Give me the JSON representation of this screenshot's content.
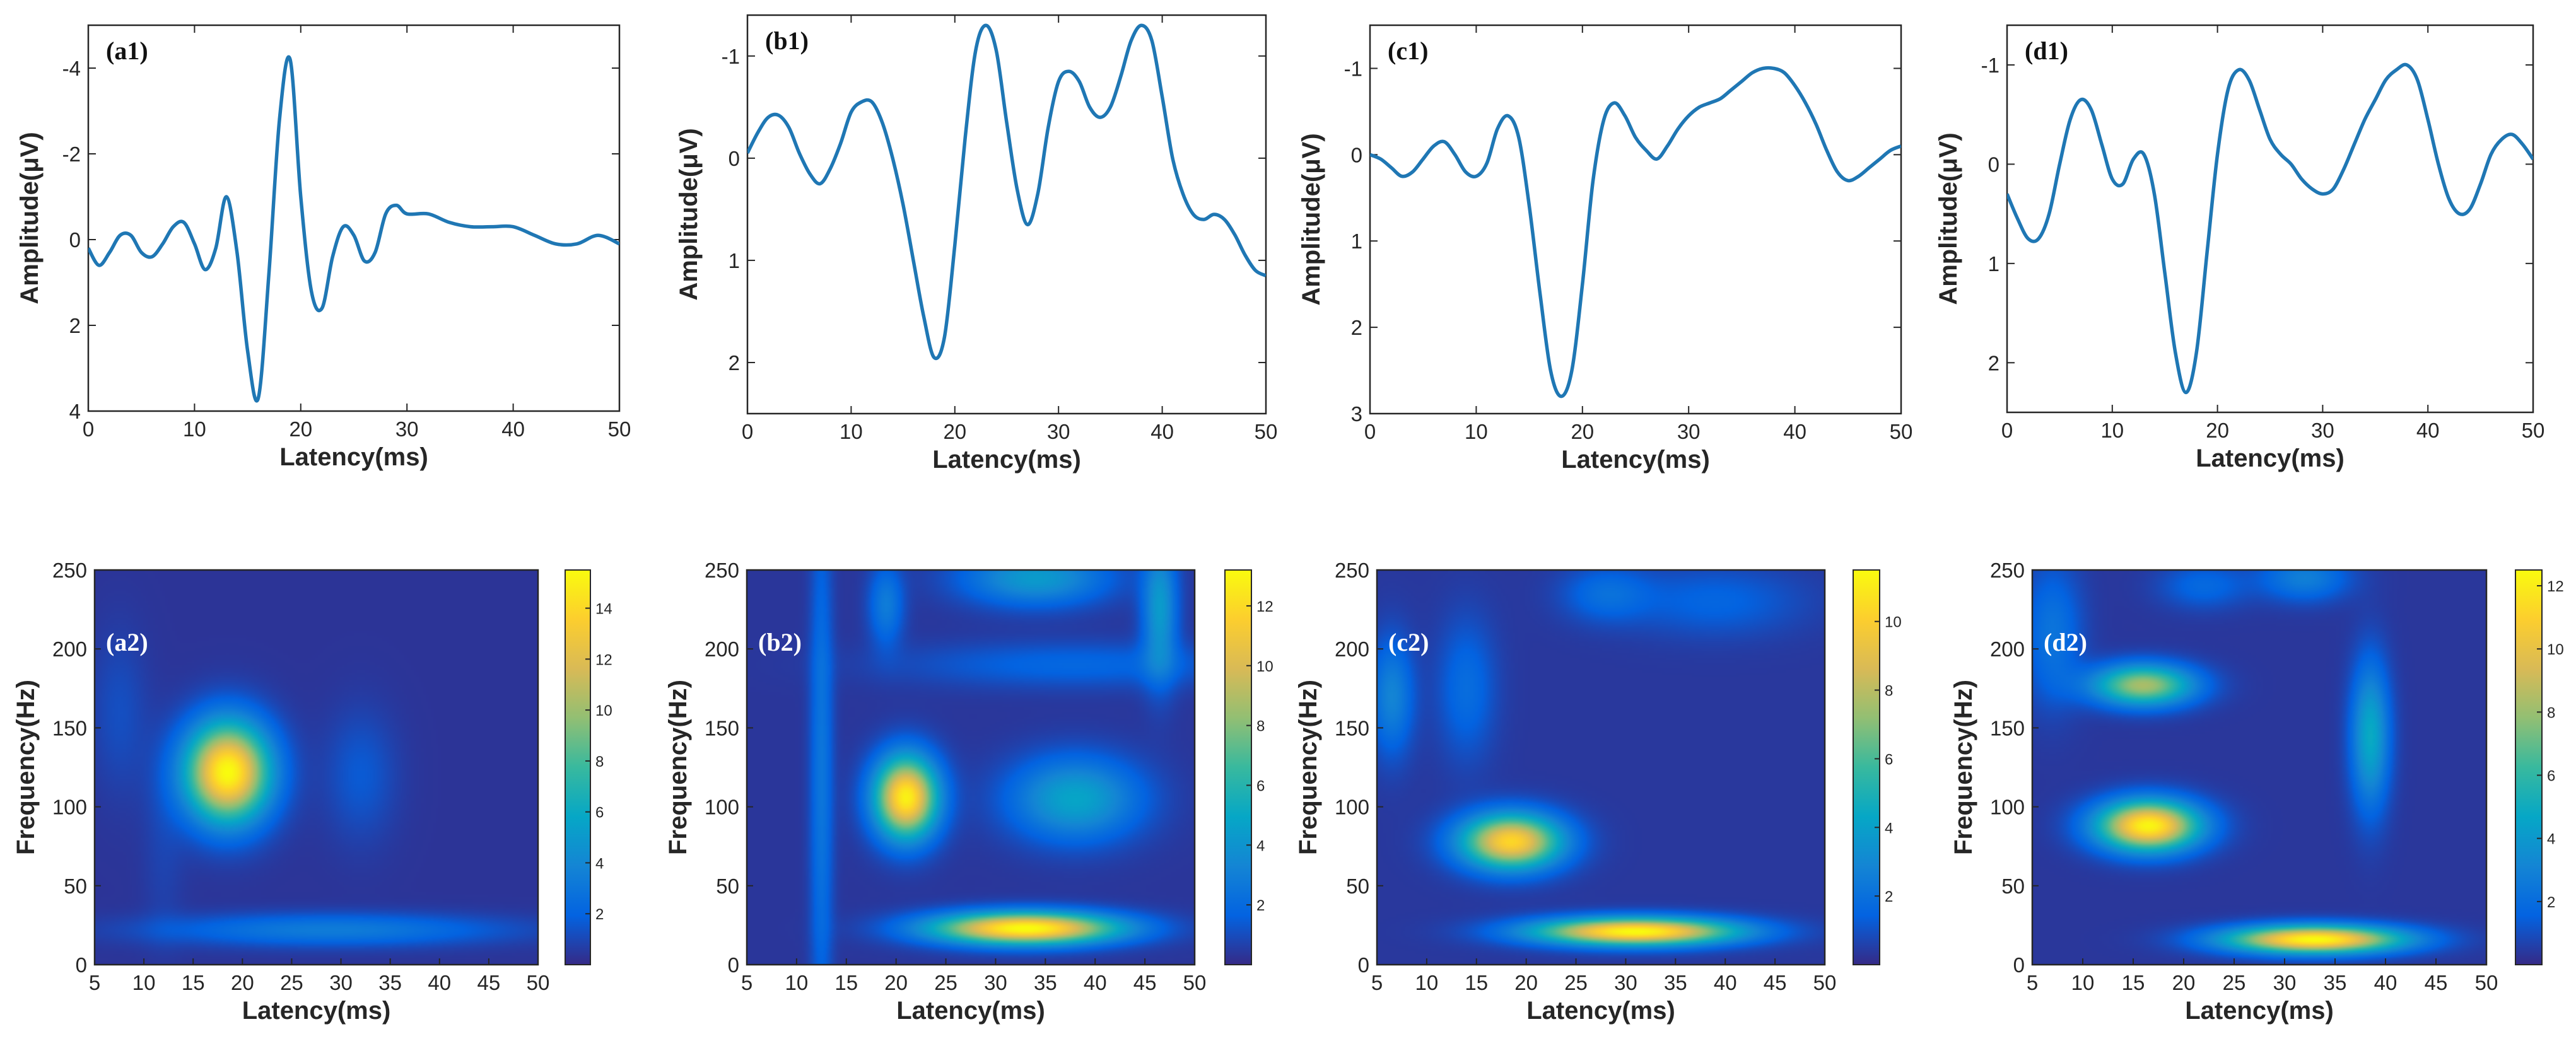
{
  "figure": {
    "background": "#ffffff"
  },
  "colors": {
    "trace": "#1f77b4",
    "axis": "#262626",
    "label_dark": "#111111",
    "label_light": "#ffffff",
    "parula": [
      "#352a87",
      "#0363e1",
      "#1485d4",
      "#06a7c6",
      "#38b99e",
      "#92bf73",
      "#d9ba56",
      "#fcce2e",
      "#f9fb0e"
    ]
  },
  "chart_data": [
    {
      "type": "line",
      "id": "a1",
      "panel_label": "(a1)",
      "xlabel": "Latency(ms)",
      "ylabel": "Amplitude(μV)",
      "xlim": [
        0,
        50
      ],
      "ylim": [
        -5,
        4
      ],
      "y_reversed": true,
      "xticks": [
        0,
        10,
        20,
        30,
        40,
        50
      ],
      "yticks": [
        -4,
        -2,
        0,
        2,
        4
      ],
      "series": [
        {
          "name": "a1",
          "x": [
            0,
            1,
            2,
            3,
            4,
            5,
            6,
            7,
            8,
            9,
            10,
            11,
            12,
            13,
            14,
            15,
            16,
            17,
            18,
            19,
            20,
            21,
            22,
            23,
            24,
            25,
            26,
            27,
            28,
            29,
            30,
            32,
            34,
            36,
            38,
            40,
            42,
            44,
            46,
            48,
            50
          ],
          "y": [
            0.2,
            0.6,
            0.3,
            -0.1,
            -0.1,
            0.3,
            0.4,
            0.1,
            -0.3,
            -0.4,
            0.1,
            0.7,
            0.2,
            -1.0,
            0.3,
            2.6,
            3.7,
            0.8,
            -2.8,
            -4.2,
            -1.0,
            1.2,
            1.6,
            0.4,
            -0.3,
            -0.1,
            0.5,
            0.3,
            -0.6,
            -0.8,
            -0.6,
            -0.6,
            -0.4,
            -0.3,
            -0.3,
            -0.3,
            -0.1,
            0.1,
            0.1,
            -0.1,
            0.1
          ]
        }
      ]
    },
    {
      "type": "line",
      "id": "b1",
      "panel_label": "(b1)",
      "xlabel": "Latency(ms)",
      "ylabel": "Amplitude(μV)",
      "xlim": [
        0,
        50
      ],
      "ylim": [
        -1.4,
        2.5
      ],
      "y_reversed": true,
      "xticks": [
        0,
        10,
        20,
        30,
        40,
        50
      ],
      "yticks": [
        -1,
        0,
        1,
        2
      ],
      "series": [
        {
          "name": "b1",
          "x": [
            0,
            1,
            2,
            3,
            4,
            5,
            6,
            7,
            8,
            9,
            10,
            11,
            12,
            13,
            14,
            15,
            16,
            17,
            18,
            19,
            20,
            21,
            22,
            23,
            24,
            25,
            26,
            27,
            28,
            29,
            30,
            31,
            32,
            33,
            34,
            35,
            36,
            37,
            38,
            39,
            40,
            41,
            42,
            43,
            44,
            45,
            46,
            47,
            48,
            49,
            50
          ],
          "y": [
            -0.05,
            -0.25,
            -0.4,
            -0.42,
            -0.3,
            -0.05,
            0.15,
            0.25,
            0.1,
            -0.15,
            -0.45,
            -0.55,
            -0.55,
            -0.35,
            0.0,
            0.45,
            1.0,
            1.55,
            1.95,
            1.75,
            0.85,
            -0.2,
            -1.05,
            -1.3,
            -1.05,
            -0.35,
            0.3,
            0.65,
            0.35,
            -0.3,
            -0.75,
            -0.85,
            -0.75,
            -0.5,
            -0.4,
            -0.5,
            -0.8,
            -1.15,
            -1.3,
            -1.15,
            -0.6,
            0.0,
            0.35,
            0.55,
            0.6,
            0.55,
            0.6,
            0.75,
            0.95,
            1.1,
            1.15
          ]
        }
      ]
    },
    {
      "type": "line",
      "id": "c1",
      "panel_label": "(c1)",
      "xlabel": "Latency(ms)",
      "ylabel": "Amplitude(μV)",
      "xlim": [
        0,
        50
      ],
      "ylim": [
        -1.5,
        3
      ],
      "y_reversed": true,
      "xticks": [
        0,
        10,
        20,
        30,
        40,
        50
      ],
      "yticks": [
        -1,
        0,
        1,
        2,
        3
      ],
      "series": [
        {
          "name": "c1",
          "x": [
            0,
            1,
            2,
            3,
            4,
            5,
            6,
            7,
            8,
            9,
            10,
            11,
            12,
            13,
            14,
            15,
            16,
            17,
            18,
            19,
            20,
            21,
            22,
            23,
            24,
            25,
            26,
            27,
            28,
            29,
            30,
            31,
            32,
            33,
            34,
            35,
            36,
            37,
            38,
            39,
            40,
            41,
            42,
            43,
            44,
            45,
            46,
            47,
            48,
            49,
            50
          ],
          "y": [
            0.0,
            0.05,
            0.15,
            0.25,
            0.2,
            0.05,
            -0.1,
            -0.15,
            0.0,
            0.2,
            0.25,
            0.1,
            -0.3,
            -0.45,
            -0.2,
            0.6,
            1.6,
            2.5,
            2.8,
            2.5,
            1.5,
            0.3,
            -0.4,
            -0.6,
            -0.45,
            -0.2,
            -0.05,
            0.05,
            -0.1,
            -0.3,
            -0.45,
            -0.55,
            -0.6,
            -0.65,
            -0.75,
            -0.85,
            -0.95,
            -1.0,
            -1.0,
            -0.95,
            -0.8,
            -0.6,
            -0.35,
            -0.05,
            0.2,
            0.3,
            0.25,
            0.15,
            0.05,
            -0.05,
            -0.1
          ]
        }
      ]
    },
    {
      "type": "line",
      "id": "d1",
      "panel_label": "(d1)",
      "xlabel": "Latency(ms)",
      "ylabel": "Amplitude(μV)",
      "xlim": [
        0,
        50
      ],
      "ylim": [
        -1.4,
        2.5
      ],
      "y_reversed": true,
      "xticks": [
        0,
        10,
        20,
        30,
        40,
        50
      ],
      "yticks": [
        -1,
        0,
        1,
        2
      ],
      "series": [
        {
          "name": "d1",
          "x": [
            0,
            1,
            2,
            3,
            4,
            5,
            6,
            7,
            8,
            9,
            10,
            11,
            12,
            13,
            14,
            15,
            16,
            17,
            18,
            19,
            20,
            21,
            22,
            23,
            24,
            25,
            26,
            27,
            28,
            29,
            30,
            31,
            32,
            33,
            34,
            35,
            36,
            37,
            38,
            39,
            40,
            41,
            42,
            43,
            44,
            45,
            46,
            47,
            48,
            49,
            50
          ],
          "y": [
            0.3,
            0.55,
            0.75,
            0.75,
            0.5,
            0.0,
            -0.45,
            -0.65,
            -0.55,
            -0.2,
            0.15,
            0.2,
            -0.05,
            -0.1,
            0.3,
            1.1,
            1.9,
            2.3,
            1.9,
            0.9,
            -0.1,
            -0.75,
            -0.95,
            -0.85,
            -0.55,
            -0.25,
            -0.1,
            0.0,
            0.15,
            0.25,
            0.3,
            0.25,
            0.05,
            -0.2,
            -0.45,
            -0.65,
            -0.85,
            -0.95,
            -1.0,
            -0.85,
            -0.45,
            0.0,
            0.35,
            0.5,
            0.45,
            0.2,
            -0.1,
            -0.25,
            -0.3,
            -0.2,
            -0.05
          ]
        }
      ]
    },
    {
      "type": "heatmap",
      "id": "a2",
      "panel_label": "(a2)",
      "xlabel": "Latency(ms)",
      "ylabel": "Frequency(Hz)",
      "xlim": [
        5,
        50
      ],
      "ylim": [
        0,
        250
      ],
      "xticks": [
        5,
        10,
        15,
        20,
        25,
        30,
        35,
        40,
        45,
        50
      ],
      "yticks": [
        0,
        50,
        100,
        150,
        200,
        250
      ],
      "colorbar": {
        "min": 0,
        "max": 15.5,
        "ticks": [
          2,
          4,
          6,
          8,
          10,
          12,
          14
        ]
      },
      "label_color": "light",
      "blobs": [
        {
          "x": 18.5,
          "y": 122,
          "sx": 3.0,
          "sy": 22,
          "amp": 15.2
        },
        {
          "x": 29,
          "y": 22,
          "sx": 12,
          "sy": 7,
          "amp": 3.0
        },
        {
          "x": 32,
          "y": 120,
          "sx": 2.5,
          "sy": 28,
          "amp": 1.3
        },
        {
          "x": 7.5,
          "y": 160,
          "sx": 2,
          "sy": 35,
          "amp": 0.9
        },
        {
          "x": 12,
          "y": 70,
          "sx": 1.5,
          "sy": 40,
          "amp": 0.5
        }
      ]
    },
    {
      "type": "heatmap",
      "id": "b2",
      "panel_label": "(b2)",
      "xlabel": "Latency(ms)",
      "ylabel": "Frequency(Hz)",
      "xlim": [
        5,
        50
      ],
      "ylim": [
        0,
        250
      ],
      "xticks": [
        5,
        10,
        15,
        20,
        25,
        30,
        35,
        40,
        45,
        50
      ],
      "yticks": [
        0,
        50,
        100,
        150,
        200,
        250
      ],
      "colorbar": {
        "min": 0,
        "max": 13.2,
        "ticks": [
          2,
          4,
          6,
          8,
          10,
          12
        ]
      },
      "label_color": "light",
      "blobs": [
        {
          "x": 21,
          "y": 106,
          "sx": 2.2,
          "sy": 18,
          "amp": 12.5
        },
        {
          "x": 33,
          "y": 23,
          "sx": 6.5,
          "sy": 7,
          "amp": 13.0
        },
        {
          "x": 38,
          "y": 105,
          "sx": 4.5,
          "sy": 18,
          "amp": 4.5
        },
        {
          "x": 34,
          "y": 245,
          "sx": 5,
          "sy": 12,
          "amp": 4.0
        },
        {
          "x": 46.5,
          "y": 225,
          "sx": 1.2,
          "sy": 30,
          "amp": 4.0
        },
        {
          "x": 12.5,
          "y": 120,
          "sx": 0.8,
          "sy": 120,
          "amp": 2.2
        },
        {
          "x": 19,
          "y": 228,
          "sx": 1.2,
          "sy": 18,
          "amp": 2.5
        },
        {
          "x": 38,
          "y": 190,
          "sx": 12,
          "sy": 10,
          "amp": 1.5
        }
      ]
    },
    {
      "type": "heatmap",
      "id": "c2",
      "panel_label": "(c2)",
      "xlabel": "Latency(ms)",
      "ylabel": "Frequency(Hz)",
      "xlim": [
        5,
        50
      ],
      "ylim": [
        0,
        250
      ],
      "xticks": [
        5,
        10,
        15,
        20,
        25,
        30,
        35,
        40,
        45,
        50
      ],
      "yticks": [
        0,
        50,
        100,
        150,
        200,
        250
      ],
      "colorbar": {
        "min": 0,
        "max": 11.5,
        "ticks": [
          2,
          4,
          6,
          8,
          10
        ]
      },
      "label_color": "light",
      "blobs": [
        {
          "x": 18.5,
          "y": 78,
          "sx": 3.5,
          "sy": 12,
          "amp": 10.0
        },
        {
          "x": 31,
          "y": 21,
          "sx": 7,
          "sy": 6,
          "amp": 11.2
        },
        {
          "x": 6.5,
          "y": 170,
          "sx": 1.5,
          "sy": 25,
          "amp": 2.5
        },
        {
          "x": 14,
          "y": 175,
          "sx": 2,
          "sy": 30,
          "amp": 1.5
        },
        {
          "x": 28,
          "y": 235,
          "sx": 3,
          "sy": 12,
          "amp": 1.5
        },
        {
          "x": 39,
          "y": 230,
          "sx": 6,
          "sy": 15,
          "amp": 1.2
        }
      ]
    },
    {
      "type": "heatmap",
      "id": "d2",
      "panel_label": "(d2)",
      "xlabel": "Latency(ms)",
      "ylabel": "Frequency(Hz)",
      "xlim": [
        5,
        50
      ],
      "ylim": [
        0,
        250
      ],
      "xticks": [
        5,
        10,
        15,
        20,
        25,
        30,
        35,
        40,
        45,
        50
      ],
      "yticks": [
        0,
        50,
        100,
        150,
        200,
        250
      ],
      "colorbar": {
        "min": 0,
        "max": 12.5,
        "ticks": [
          2,
          4,
          6,
          8,
          10,
          12
        ]
      },
      "label_color": "light",
      "blobs": [
        {
          "x": 16.5,
          "y": 88,
          "sx": 3.5,
          "sy": 11,
          "amp": 12.0
        },
        {
          "x": 16,
          "y": 177,
          "sx": 3.5,
          "sy": 9,
          "amp": 8.0
        },
        {
          "x": 33,
          "y": 16,
          "sx": 6,
          "sy": 6,
          "amp": 12.2
        },
        {
          "x": 38.5,
          "y": 145,
          "sx": 1.3,
          "sy": 32,
          "amp": 4.5
        },
        {
          "x": 32,
          "y": 245,
          "sx": 3,
          "sy": 10,
          "amp": 2.5
        },
        {
          "x": 7,
          "y": 210,
          "sx": 2,
          "sy": 30,
          "amp": 2.0
        },
        {
          "x": 22,
          "y": 240,
          "sx": 3,
          "sy": 10,
          "amp": 1.5
        }
      ]
    }
  ]
}
